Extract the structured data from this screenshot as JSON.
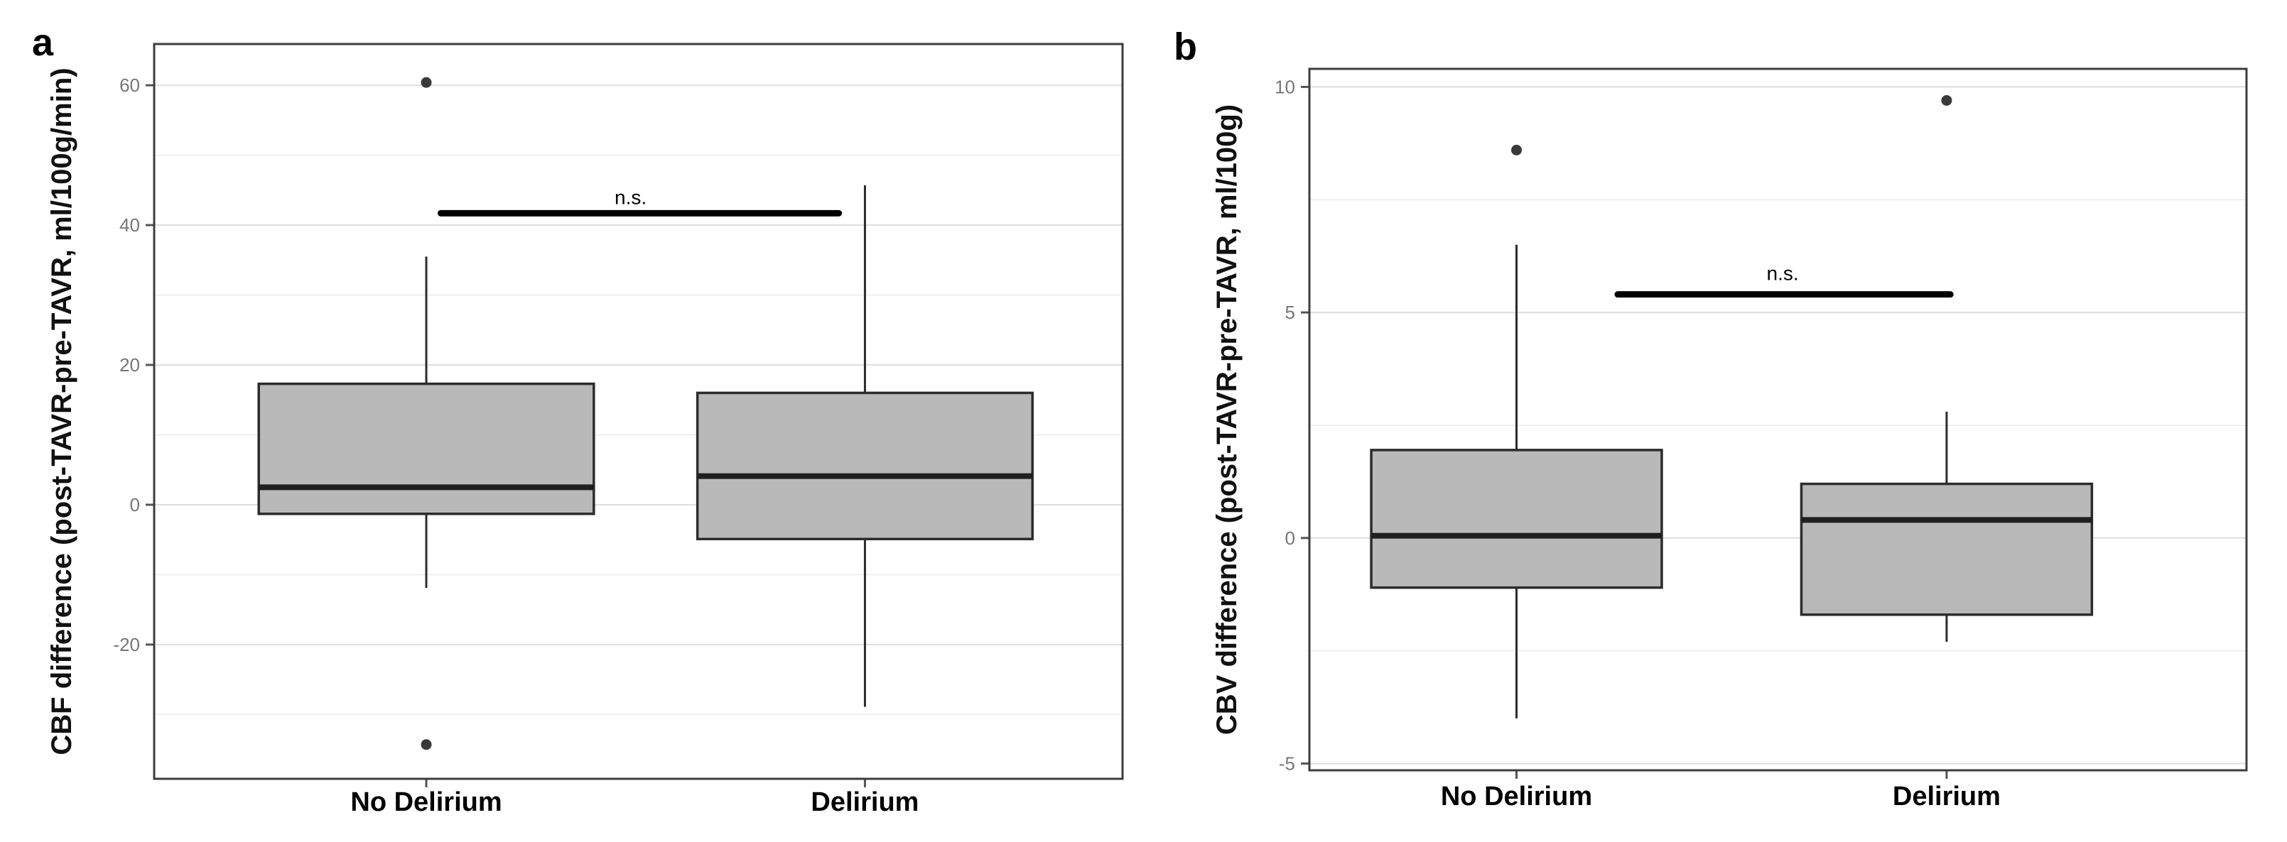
{
  "figure": {
    "background": "#ffffff",
    "description": "Two box plots comparing No Delirium vs Delirium groups"
  },
  "colors": {
    "box_fill": "#b9b9b9",
    "box_stroke": "#2c2c2c",
    "median_line": "#1f1f1f",
    "whisker": "#2c2c2c",
    "outlier": "#3a3a3a",
    "panel_border": "#3d3d3d",
    "grid_major": "#dedede",
    "grid_minor": "#efefef",
    "ns_bar": "#000000",
    "tick_label": "#777777",
    "text": "#000000"
  },
  "chart_data": [
    {
      "type": "box",
      "panel_label": "a",
      "ylabel": "CBF difference (post-TAVR-pre-TAVR, ml/100g/min)",
      "xlabel": "",
      "categories": [
        "No Delirium",
        "Delirium"
      ],
      "ylim": [
        -39.2,
        65.9
      ],
      "yticks": [
        -20,
        0,
        20,
        40,
        60
      ],
      "ytick_labels": [
        "-20",
        "0",
        "20",
        "40",
        "60"
      ],
      "minor_step": 10,
      "grid": true,
      "legend": "none",
      "groups": [
        {
          "name": "No Delirium",
          "q1": -1.3,
          "median": 2.5,
          "q3": 17.3,
          "whisker_low": -11.9,
          "whisker_high": 35.5,
          "outliers": [
            60.4,
            -34.3
          ]
        },
        {
          "name": "Delirium",
          "q1": -4.9,
          "median": 4.1,
          "q3": 16.0,
          "whisker_low": -28.9,
          "whisker_high": 45.7,
          "outliers": []
        }
      ],
      "ns": {
        "label": "n.s.",
        "y": 41.7
      }
    },
    {
      "type": "box",
      "panel_label": "b",
      "ylabel": "CBV difference (post-TAVR-pre-TAVR, ml/100g)",
      "xlabel": "",
      "categories": [
        "No Delirium",
        "Delirium"
      ],
      "ylim": [
        -5.15,
        10.4
      ],
      "yticks": [
        -5,
        0,
        5,
        10
      ],
      "ytick_labels": [
        "-5",
        "0",
        "5",
        "10"
      ],
      "minor_step": 2.5,
      "grid": true,
      "legend": "none",
      "groups": [
        {
          "name": "No Delirium",
          "q1": -1.1,
          "median": 0.05,
          "q3": 1.95,
          "whisker_low": -4.0,
          "whisker_high": 6.5,
          "outliers": [
            8.6
          ]
        },
        {
          "name": "Delirium",
          "q1": -1.7,
          "median": 0.4,
          "q3": 1.2,
          "whisker_low": -2.3,
          "whisker_high": 2.8,
          "outliers": [
            9.7
          ]
        }
      ],
      "ns": {
        "label": "n.s.",
        "y": 5.4
      }
    }
  ]
}
